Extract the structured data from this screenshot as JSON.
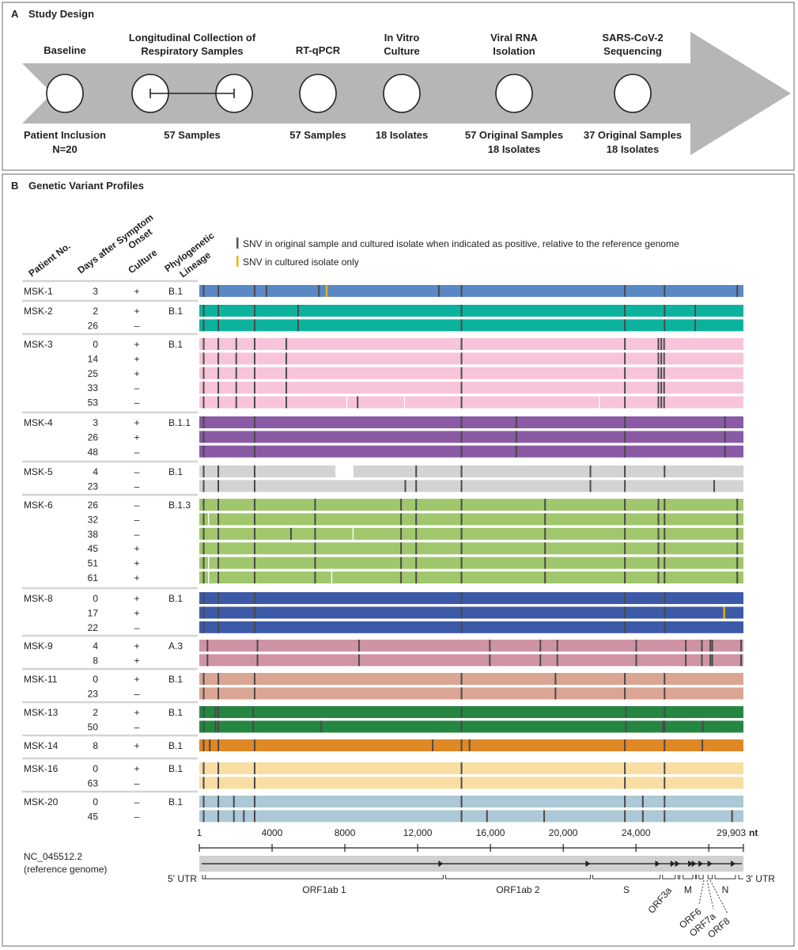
{
  "panel_a": {
    "label": "A",
    "title": "Study Design",
    "steps": [
      {
        "top": [
          "Baseline"
        ],
        "bottom": [
          "Patient Inclusion",
          "N=20"
        ]
      },
      {
        "top": [
          "Longitudinal Collection of",
          "Respiratory Samples"
        ],
        "bottom": [
          "57 Samples"
        ],
        "linked": true
      },
      {
        "top": [
          "RT-qPCR"
        ],
        "bottom": [
          "57 Samples"
        ]
      },
      {
        "top": [
          "In Vitro",
          "Culture"
        ],
        "bottom": [
          "18 Isolates"
        ]
      },
      {
        "top": [
          "Viral RNA",
          "Isolation"
        ],
        "bottom": [
          "57 Original Samples",
          "18 Isolates"
        ]
      },
      {
        "top": [
          "SARS-CoV-2",
          "Sequencing"
        ],
        "bottom": [
          "37 Original Samples",
          "18 Isolates"
        ]
      }
    ]
  },
  "panel_b": {
    "label": "B",
    "title": "Genetic Variant Profiles",
    "columns": {
      "patient": [
        "Patient No."
      ],
      "days": [
        "Days after Symptom",
        "Onset"
      ],
      "culture": [
        "Culture"
      ],
      "lineage": [
        "Phylogenetic",
        "Lineage"
      ]
    },
    "legend": [
      {
        "text": "SNV in original sample and cultured isolate when indicated as positive, relative to the reference genome",
        "color": "#555555"
      },
      {
        "text": "SNV in cultured isolate only",
        "color": "#e8b400"
      }
    ],
    "patients": [
      {
        "id": "MSK-1",
        "lineage": "B.1",
        "color": "#5b87c5",
        "samples": [
          {
            "day": "3",
            "culture": "+",
            "snv": [
              241,
              1045,
              3043,
              3692,
              6572,
              13164,
              14410,
              23388,
              25568,
              29564
            ],
            "isolate_only": [
              6988
            ],
            "gaps": []
          }
        ]
      },
      {
        "id": "MSK-2",
        "lineage": "B.1",
        "color": "#0bb39e",
        "samples": [
          {
            "day": "2",
            "culture": "+",
            "snv": [
              241,
              1045,
              3043,
              5431,
              14410,
              23388,
              25568,
              27255
            ],
            "isolate_only": [],
            "gaps": []
          },
          {
            "day": "26",
            "culture": "–",
            "snv": [
              241,
              1045,
              3043,
              5431,
              14410,
              23388,
              25568,
              27255
            ],
            "isolate_only": [],
            "gaps": []
          }
        ]
      },
      {
        "id": "MSK-3",
        "lineage": "B.1",
        "color": "#f7c4da",
        "samples": [
          {
            "day": "0",
            "culture": "+",
            "snv": [
              241,
              1045,
              2032,
              3043,
              4782,
              14410,
              23388,
              25231,
              25387,
              25543
            ],
            "isolate_only": [],
            "gaps": []
          },
          {
            "day": "14",
            "culture": "+",
            "snv": [
              241,
              1045,
              2032,
              3043,
              4782,
              14410,
              23388,
              25231,
              25387,
              25543
            ],
            "isolate_only": [],
            "gaps": []
          },
          {
            "day": "25",
            "culture": "+",
            "snv": [
              241,
              1045,
              2032,
              3043,
              4782,
              14410,
              23388,
              25231,
              25387,
              25543
            ],
            "isolate_only": [],
            "gaps": []
          },
          {
            "day": "33",
            "culture": "–",
            "snv": [
              241,
              1045,
              2032,
              3043,
              4782,
              14410,
              23388,
              25231,
              25387,
              25543
            ],
            "isolate_only": [],
            "gaps": []
          },
          {
            "day": "53",
            "culture": "–",
            "snv": [
              241,
              1045,
              2032,
              3043,
              4782,
              8701,
              14410,
              23388,
              25231,
              25387,
              25543
            ],
            "isolate_only": [],
            "gaps": [
              [
                8080,
                8130
              ],
              [
                11250,
                11300
              ],
              [
                21960,
                22010
              ]
            ]
          }
        ]
      },
      {
        "id": "MSK-4",
        "lineage": "B.1.1",
        "color": "#8a5aa5",
        "samples": [
          {
            "day": "3",
            "culture": "+",
            "snv": [
              241,
              3043,
              14410,
              17420,
              23388,
              28889
            ],
            "isolate_only": [],
            "gaps": []
          },
          {
            "day": "26",
            "culture": "+",
            "snv": [
              241,
              3043,
              14410,
              17420,
              23388,
              28889
            ],
            "isolate_only": [],
            "gaps": []
          },
          {
            "day": "48",
            "culture": "–",
            "snv": [
              241,
              3043,
              14410,
              17420,
              23388,
              28889
            ],
            "isolate_only": [],
            "gaps": []
          }
        ]
      },
      {
        "id": "MSK-5",
        "lineage": "B.1",
        "color": "#d3d3d5",
        "samples": [
          {
            "day": "4",
            "culture": "–",
            "snv": [
              241,
              1045,
              3043,
              11918,
              14410,
              21494,
              23388,
              25568
            ],
            "isolate_only": [],
            "gaps": [
              [
                7481,
                8467
              ]
            ]
          },
          {
            "day": "23",
            "culture": "–",
            "snv": [
              241,
              1045,
              3043,
              11322,
              11918,
              14410,
              21494,
              23388,
              28293
            ],
            "isolate_only": [],
            "gaps": []
          }
        ]
      },
      {
        "id": "MSK-6",
        "lineage": "B.1.3",
        "color": "#a0c76c",
        "samples": [
          {
            "day": "26",
            "culture": "–",
            "snv": [
              241,
              1045,
              3043,
              6365,
              11088,
              11918,
              14410,
              19003,
              23388,
              25231,
              25568,
              29564
            ],
            "isolate_only": [],
            "gaps": []
          },
          {
            "day": "32",
            "culture": "–",
            "snv": [
              241,
              1045,
              3043,
              6365,
              11088,
              11918,
              14410,
              19003,
              23388,
              25231,
              25568,
              29564
            ],
            "isolate_only": [],
            "gaps": [
              [
                480,
                540
              ]
            ]
          },
          {
            "day": "38",
            "culture": "–",
            "snv": [
              241,
              1045,
              3043,
              5042,
              6365,
              11088,
              11918,
              14410,
              19003,
              23388,
              25231,
              25568,
              29564
            ],
            "isolate_only": [],
            "gaps": [
              [
                8420,
                8480
              ]
            ]
          },
          {
            "day": "45",
            "culture": "+",
            "snv": [
              241,
              1045,
              3043,
              6365,
              11088,
              11918,
              14410,
              19003,
              23388,
              25231,
              25568,
              29564
            ],
            "isolate_only": [],
            "gaps": []
          },
          {
            "day": "51",
            "culture": "+",
            "snv": [
              241,
              1045,
              3043,
              6365,
              11088,
              11918,
              14410,
              19003,
              23388,
              25231,
              25568,
              29564
            ],
            "isolate_only": [],
            "gaps": [
              [
                480,
                540
              ]
            ]
          },
          {
            "day": "61",
            "culture": "+",
            "snv": [
              241,
              1045,
              3043,
              6365,
              11088,
              11918,
              14410,
              19003,
              23388,
              25231,
              25568,
              29564
            ],
            "isolate_only": [],
            "gaps": [
              [
                480,
                540
              ],
              [
                7250,
                7310
              ]
            ]
          }
        ]
      },
      {
        "id": "MSK-8",
        "lineage": "B.1",
        "color": "#3c5aa8",
        "samples": [
          {
            "day": "0",
            "culture": "+",
            "snv": [
              241,
              1045,
              3043,
              14410,
              23388,
              25568
            ],
            "isolate_only": [],
            "gaps": []
          },
          {
            "day": "17",
            "culture": "+",
            "snv": [
              241,
              1045,
              3043,
              14410,
              23388,
              25568
            ],
            "isolate_only": [
              28838
            ],
            "gaps": []
          },
          {
            "day": "22",
            "culture": "–",
            "snv": [
              241,
              1045,
              3043,
              14410,
              23388,
              25568
            ],
            "isolate_only": [],
            "gaps": []
          }
        ]
      },
      {
        "id": "MSK-9",
        "lineage": "A.3",
        "color": "#cf94a3",
        "samples": [
          {
            "day": "4",
            "culture": "+",
            "snv": [
              449,
              3199,
              8778,
              15966,
              18743,
              19677,
              24011,
              26736,
              27618,
              28085,
              28189,
              29772
            ],
            "isolate_only": [],
            "gaps": []
          },
          {
            "day": "8",
            "culture": "+",
            "snv": [
              449,
              3199,
              8778,
              15966,
              18743,
              19677,
              24011,
              26736,
              27618,
              28085,
              28189,
              29772
            ],
            "isolate_only": [],
            "gaps": []
          }
        ]
      },
      {
        "id": "MSK-11",
        "lineage": "B.1",
        "color": "#daa593",
        "samples": [
          {
            "day": "0",
            "culture": "+",
            "snv": [
              241,
              1045,
              3043,
              14410,
              19574,
              23388,
              25568
            ],
            "isolate_only": [],
            "gaps": []
          },
          {
            "day": "23",
            "culture": "–",
            "snv": [
              241,
              1045,
              3043,
              14410,
              19574,
              23388,
              25568
            ],
            "isolate_only": [],
            "gaps": []
          }
        ]
      },
      {
        "id": "MSK-13",
        "lineage": "B.1",
        "color": "#248641",
        "samples": [
          {
            "day": "2",
            "culture": "+",
            "snv": [
              241,
              890,
              1045,
              2965,
              14410,
              23440,
              25568
            ],
            "isolate_only": [],
            "gaps": []
          },
          {
            "day": "50",
            "culture": "–",
            "snv": [
              241,
              890,
              1045,
              2965,
              6702,
              14410,
              23440,
              25490,
              25568,
              27670
            ],
            "isolate_only": [],
            "gaps": []
          }
        ]
      },
      {
        "id": "MSK-14",
        "lineage": "B.1",
        "color": "#e08826",
        "samples": [
          {
            "day": "8",
            "culture": "+",
            "snv": [
              241,
              578,
              1045,
              3043,
              12827,
              14410,
              14851,
              23388,
              25568,
              27644
            ],
            "isolate_only": [],
            "gaps": []
          }
        ]
      },
      {
        "id": "MSK-16",
        "lineage": "B.1",
        "color": "#f9dea3",
        "samples": [
          {
            "day": "0",
            "culture": "+",
            "snv": [
              241,
              1045,
              3043,
              14410,
              23388,
              25568
            ],
            "isolate_only": [],
            "gaps": []
          },
          {
            "day": "63",
            "culture": "–",
            "snv": [
              241,
              1045,
              3043,
              14410,
              23388,
              25568
            ],
            "isolate_only": [],
            "gaps": []
          }
        ]
      },
      {
        "id": "MSK-20",
        "lineage": "B.1",
        "color": "#adc8d6",
        "samples": [
          {
            "day": "0",
            "culture": "–",
            "snv": [
              241,
              1045,
              1902,
              3043,
              14410,
              23388,
              24374,
              25568
            ],
            "isolate_only": [],
            "gaps": []
          },
          {
            "day": "45",
            "culture": "–",
            "snv": [
              241,
              1045,
              1902,
              2447,
              3043,
              14410,
              15811,
              18951,
              23388,
              24374,
              25568,
              29279
            ],
            "isolate_only": [],
            "gaps": []
          }
        ]
      }
    ]
  },
  "genome": {
    "length": 29903,
    "ticks": [
      1,
      4000,
      8000,
      12000,
      16000,
      20000,
      24000,
      29903
    ],
    "tick_labels": [
      "1",
      "4000",
      "8000",
      "12,000",
      "16,000",
      "20,000",
      "24,000",
      "29,903"
    ],
    "minor_ticks": [
      28000
    ],
    "unit": "nt",
    "reference": [
      "NC_045512.2",
      "(reference genome)"
    ],
    "utr5": "5' UTR",
    "utr3": "3' UTR",
    "genes": [
      {
        "name": "ORF1ab 1",
        "start": 266,
        "end": 13468
      },
      {
        "name": "ORF1ab 2",
        "start": 13468,
        "end": 21555
      },
      {
        "name": "S",
        "start": 21563,
        "end": 25384
      },
      {
        "name": "ORF3a",
        "start": 25393,
        "end": 26220
      },
      {
        "name": "",
        "start": 26245,
        "end": 26472
      },
      {
        "name": "M",
        "start": 26523,
        "end": 27191
      },
      {
        "name": "ORF6",
        "start": 27202,
        "end": 27387
      },
      {
        "name": "ORF7a",
        "start": 27394,
        "end": 27759
      },
      {
        "name": "ORF8",
        "start": 27894,
        "end": 28259
      },
      {
        "name": "N",
        "start": 28274,
        "end": 29533
      }
    ]
  }
}
